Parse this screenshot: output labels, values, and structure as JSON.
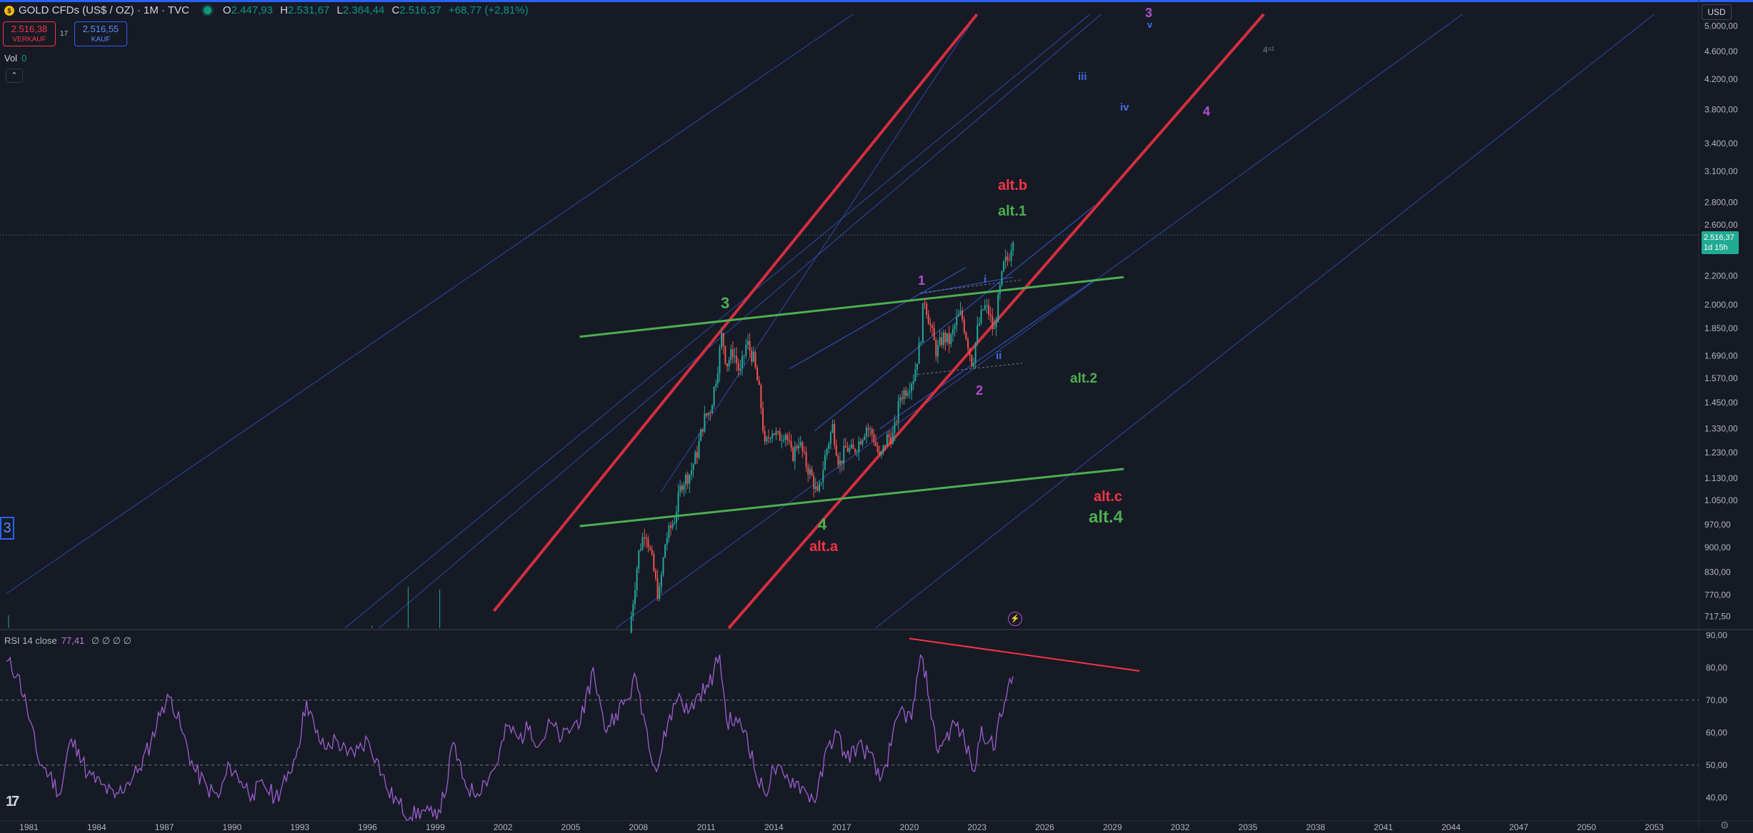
{
  "header": {
    "symbol_title": "GOLD CFDs (US$ / OZ) · 1M · TVC",
    "open_label": "O",
    "open": "2.447,93",
    "high_label": "H",
    "high": "2.531,67",
    "low_label": "L",
    "low": "2.364,44",
    "close_label": "C",
    "close": "2.516,37",
    "change": "+68,77 (+2,81%)",
    "coin_glyph": "$"
  },
  "trade": {
    "sell_price": "2.516,38",
    "sell_label": "VERKAUF",
    "spread": "17",
    "buy_price": "2.516,55",
    "buy_label": "KAUF"
  },
  "volume": {
    "label": "Vol",
    "value": "0"
  },
  "currency_button": "USD",
  "last_price_tag": {
    "price": "2.516,37",
    "countdown": "1d 15h"
  },
  "rsi_header": {
    "title": "RSI 14 close",
    "value": "77,41",
    "extras": "∅ ∅ ∅ ∅"
  },
  "colors": {
    "background": "#161a25",
    "up_candle": "#26a69a",
    "down_candle": "#ef5350",
    "channel_red": "#d32f3f",
    "channel_green": "#4caf50",
    "channel_blue": "#2f4fb5",
    "rsi_line": "#9c5fcf",
    "wave_purple": "#b04fd1",
    "wave_blue": "#3f6ee6",
    "wave_green": "#4caf50",
    "wave_red": "#f23645"
  },
  "chart_data": [
    {
      "type": "candlestick",
      "title": "GOLD CFDs (US$ / OZ) · 1M · TVC",
      "y_scale": "log",
      "ylim": [
        690,
        5200
      ],
      "xlim": [
        1980.0,
        2056.0
      ],
      "y_ticks": [
        {
          "v": 5000,
          "t": "5.000,00"
        },
        {
          "v": 4600,
          "t": "4.600,00"
        },
        {
          "v": 4200,
          "t": "4.200,00"
        },
        {
          "v": 3800,
          "t": "3.800,00"
        },
        {
          "v": 3400,
          "t": "3.400,00"
        },
        {
          "v": 3100,
          "t": "3.100,00"
        },
        {
          "v": 2800,
          "t": "2.800,00"
        },
        {
          "v": 2600,
          "t": "2.600,00"
        },
        {
          "v": 2400,
          "t": "2.400,00"
        },
        {
          "v": 2200,
          "t": "2.200,00"
        },
        {
          "v": 2000,
          "t": "2.000,00"
        },
        {
          "v": 1850,
          "t": "1.850,00"
        },
        {
          "v": 1690,
          "t": "1.690,00"
        },
        {
          "v": 1570,
          "t": "1.570,00"
        },
        {
          "v": 1450,
          "t": "1.450,00"
        },
        {
          "v": 1330,
          "t": "1.330,00"
        },
        {
          "v": 1230,
          "t": "1.230,00"
        },
        {
          "v": 1130,
          "t": "1.130,00"
        },
        {
          "v": 1050,
          "t": "1.050,00"
        },
        {
          "v": 970,
          "t": "970,00"
        },
        {
          "v": 900,
          "t": "900,00"
        },
        {
          "v": 830,
          "t": "830,00"
        },
        {
          "v": 770,
          "t": "770,00"
        },
        {
          "v": 717.5,
          "t": "717,50"
        }
      ],
      "x_ticks": [
        1981,
        1984,
        1987,
        1990,
        1993,
        1996,
        1999,
        2002,
        2005,
        2008,
        2011,
        2014,
        2017,
        2020,
        2023,
        2026,
        2029,
        2032,
        2035,
        2038,
        2041,
        2044,
        2047,
        2050,
        2053
      ],
      "last_price": 2516.37,
      "price_path": [
        [
          2007.6,
          680
        ],
        [
          2008.0,
          880
        ],
        [
          2008.3,
          960
        ],
        [
          2008.6,
          860
        ],
        [
          2008.9,
          760
        ],
        [
          2009.2,
          920
        ],
        [
          2009.6,
          990
        ],
        [
          2009.9,
          1110
        ],
        [
          2010.3,
          1150
        ],
        [
          2010.6,
          1230
        ],
        [
          2010.9,
          1370
        ],
        [
          2011.2,
          1420
        ],
        [
          2011.5,
          1620
        ],
        [
          2011.7,
          1820
        ],
        [
          2011.9,
          1640
        ],
        [
          2012.2,
          1720
        ],
        [
          2012.5,
          1590
        ],
        [
          2012.8,
          1770
        ],
        [
          2013.1,
          1670
        ],
        [
          2013.4,
          1470
        ],
        [
          2013.6,
          1250
        ],
        [
          2013.9,
          1330
        ],
        [
          2014.2,
          1290
        ],
        [
          2014.5,
          1320
        ],
        [
          2014.8,
          1210
        ],
        [
          2015.1,
          1280
        ],
        [
          2015.4,
          1190
        ],
        [
          2015.7,
          1130
        ],
        [
          2015.95,
          1060
        ],
        [
          2016.3,
          1230
        ],
        [
          2016.6,
          1340
        ],
        [
          2016.9,
          1180
        ],
        [
          2017.2,
          1250
        ],
        [
          2017.5,
          1230
        ],
        [
          2017.8,
          1280
        ],
        [
          2018.1,
          1340
        ],
        [
          2018.4,
          1300
        ],
        [
          2018.7,
          1200
        ],
        [
          2019.0,
          1290
        ],
        [
          2019.3,
          1300
        ],
        [
          2019.6,
          1480
        ],
        [
          2019.9,
          1520
        ],
        [
          2020.2,
          1580
        ],
        [
          2020.5,
          1780
        ],
        [
          2020.65,
          2060
        ],
        [
          2020.9,
          1880
        ],
        [
          2021.2,
          1710
        ],
        [
          2021.5,
          1800
        ],
        [
          2021.8,
          1770
        ],
        [
          2022.1,
          1900
        ],
        [
          2022.3,
          1940
        ],
        [
          2022.6,
          1760
        ],
        [
          2022.8,
          1640
        ],
        [
          2023.0,
          1830
        ],
        [
          2023.3,
          1990
        ],
        [
          2023.5,
          1960
        ],
        [
          2023.75,
          1820
        ],
        [
          2023.95,
          2040
        ],
        [
          2024.2,
          2290
        ],
        [
          2024.4,
          2330
        ],
        [
          2024.6,
          2516.37
        ]
      ]
    },
    {
      "type": "line",
      "title": "RSI 14 close",
      "ylim": [
        35,
        90
      ],
      "y_ticks": [
        {
          "v": 90,
          "t": "90,00"
        },
        {
          "v": 80,
          "t": "80,00"
        },
        {
          "v": 70,
          "t": "70,00"
        },
        {
          "v": 60,
          "t": "60,00"
        },
        {
          "v": 50,
          "t": "50,00"
        },
        {
          "v": 40,
          "t": "40,00"
        }
      ],
      "levels": [
        70,
        50
      ],
      "last_value": 77.41,
      "series": [
        {
          "values": [
            [
              1980.0,
              82
            ],
            [
              1980.5,
              78
            ],
            [
              1980.9,
              68
            ],
            [
              1981.4,
              52
            ],
            [
              1981.9,
              47
            ],
            [
              1982.4,
              41
            ],
            [
              1982.8,
              57
            ],
            [
              1983.2,
              55
            ],
            [
              1983.6,
              47
            ],
            [
              1984.2,
              44
            ],
            [
              1984.8,
              40
            ],
            [
              1985.3,
              44
            ],
            [
              1985.9,
              49
            ],
            [
              1986.4,
              57
            ],
            [
              1986.9,
              68
            ],
            [
              1987.3,
              71
            ],
            [
              1987.8,
              60
            ],
            [
              1988.3,
              49
            ],
            [
              1988.9,
              43
            ],
            [
              1989.4,
              40
            ],
            [
              1989.9,
              50
            ],
            [
              1990.4,
              45
            ],
            [
              1990.9,
              41
            ],
            [
              1991.4,
              44
            ],
            [
              1991.9,
              40
            ],
            [
              1992.4,
              45
            ],
            [
              1992.9,
              55
            ],
            [
              1993.3,
              70
            ],
            [
              1993.7,
              60
            ],
            [
              1994.1,
              55
            ],
            [
              1994.6,
              58
            ],
            [
              1995.1,
              53
            ],
            [
              1995.6,
              55
            ],
            [
              1996.0,
              58
            ],
            [
              1996.4,
              52
            ],
            [
              1996.9,
              42
            ],
            [
              1997.4,
              38
            ],
            [
              1997.9,
              34
            ],
            [
              1998.4,
              36
            ],
            [
              1998.9,
              34
            ],
            [
              1999.4,
              40
            ],
            [
              1999.8,
              57
            ],
            [
              2000.2,
              46
            ],
            [
              2000.7,
              41
            ],
            [
              2001.2,
              45
            ],
            [
              2001.7,
              50
            ],
            [
              2002.2,
              62
            ],
            [
              2002.7,
              58
            ],
            [
              2003.2,
              62
            ],
            [
              2003.6,
              56
            ],
            [
              2004.1,
              63
            ],
            [
              2004.6,
              58
            ],
            [
              2005.1,
              62
            ],
            [
              2005.6,
              66
            ],
            [
              2006.0,
              80
            ],
            [
              2006.5,
              61
            ],
            [
              2007.0,
              66
            ],
            [
              2007.5,
              70
            ],
            [
              2007.9,
              77
            ],
            [
              2008.3,
              63
            ],
            [
              2008.8,
              48
            ],
            [
              2009.3,
              63
            ],
            [
              2009.8,
              72
            ],
            [
              2010.2,
              66
            ],
            [
              2010.7,
              72
            ],
            [
              2011.1,
              74
            ],
            [
              2011.6,
              84
            ],
            [
              2011.9,
              64
            ],
            [
              2012.4,
              63
            ],
            [
              2012.8,
              60
            ],
            [
              2013.2,
              47
            ],
            [
              2013.6,
              41
            ],
            [
              2014.0,
              49
            ],
            [
              2014.5,
              46
            ],
            [
              2015.0,
              45
            ],
            [
              2015.5,
              41
            ],
            [
              2015.9,
              40
            ],
            [
              2016.4,
              56
            ],
            [
              2016.8,
              60
            ],
            [
              2017.2,
              52
            ],
            [
              2017.7,
              56
            ],
            [
              2018.2,
              54
            ],
            [
              2018.7,
              45
            ],
            [
              2019.2,
              56
            ],
            [
              2019.6,
              67
            ],
            [
              2020.1,
              64
            ],
            [
              2020.4,
              79
            ],
            [
              2020.6,
              83
            ],
            [
              2020.9,
              70
            ],
            [
              2021.2,
              55
            ],
            [
              2021.6,
              58
            ],
            [
              2022.0,
              63
            ],
            [
              2022.3,
              60
            ],
            [
              2022.7,
              52
            ],
            [
              2022.9,
              48
            ],
            [
              2023.2,
              62
            ],
            [
              2023.5,
              57
            ],
            [
              2023.8,
              55
            ],
            [
              2024.0,
              66
            ],
            [
              2024.3,
              71
            ],
            [
              2024.6,
              77.41
            ]
          ]
        }
      ]
    }
  ],
  "annotations": {
    "wave_3_main": "3",
    "wave_4_main": "4",
    "wave_1": "1",
    "wave_2": "2",
    "wave_i": "i",
    "wave_ii": "ii",
    "wave_iii": "iii",
    "wave_iv": "iv",
    "wave_v": "v",
    "wave_3_top": "3",
    "wave_4_right": "4",
    "wave_4_5_2": "4⁵²",
    "alt_b": "alt.b",
    "alt_1": "alt.1",
    "alt_2": "alt.2",
    "alt_c": "alt.c",
    "alt_4": "alt.4",
    "alt_a": "alt.a",
    "box_3": "3"
  }
}
